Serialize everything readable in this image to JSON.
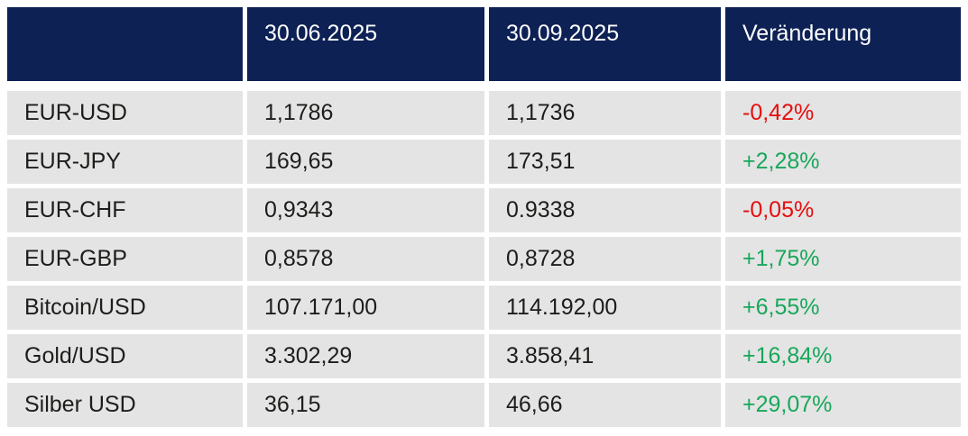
{
  "table": {
    "columns": [
      "",
      "30.06.2025",
      "30.09.2025",
      "Veränderung"
    ],
    "rows": [
      {
        "label": "EUR-USD",
        "value_30_06": "1,1786",
        "value_30_09": "1,1736",
        "change": "-0,42%",
        "direction": "down"
      },
      {
        "label": "EUR-JPY",
        "value_30_06": "169,65",
        "value_30_09": "173,51",
        "change": "+2,28%",
        "direction": "up"
      },
      {
        "label": "EUR-CHF",
        "value_30_06": "0,9343",
        "value_30_09": "0.9338",
        "change": "-0,05%",
        "direction": "down"
      },
      {
        "label": "EUR-GBP",
        "value_30_06": "0,8578",
        "value_30_09": "0,8728",
        "change": "+1,75%",
        "direction": "up"
      },
      {
        "label": "Bitcoin/USD",
        "value_30_06": "107.171,00",
        "value_30_09": "114.192,00",
        "change": "+6,55%",
        "direction": "up"
      },
      {
        "label": "Gold/USD",
        "value_30_06": "3.302,29",
        "value_30_09": "3.858,41",
        "change": "+16,84%",
        "direction": "up"
      },
      {
        "label": "Silber USD",
        "value_30_06": "36,15",
        "value_30_09": "46,66",
        "change": "+29,07%",
        "direction": "up"
      }
    ]
  },
  "chart_data": {
    "type": "table",
    "title": "",
    "columns": [
      "",
      "30.06.2025",
      "30.09.2025",
      "Veränderung"
    ],
    "rows": [
      [
        "EUR-USD",
        "1,1786",
        "1,1736",
        "-0,42%"
      ],
      [
        "EUR-JPY",
        "169,65",
        "173,51",
        "+2,28%"
      ],
      [
        "EUR-CHF",
        "0,9343",
        "0.9338",
        "-0,05%"
      ],
      [
        "EUR-GBP",
        "0,8578",
        "0,8728",
        "+1,75%"
      ],
      [
        "Bitcoin/USD",
        "107.171,00",
        "114.192,00",
        "+6,55%"
      ],
      [
        "Gold/USD",
        "3.302,29",
        "3.858,41",
        "+16,84%"
      ],
      [
        "Silber USD",
        "36,15",
        "46,66",
        "+29,07%"
      ]
    ],
    "notes": "positive changes rendered green, negative changes rendered red"
  },
  "colors": {
    "header_bg": "#0d2155",
    "header_text": "#ffffff",
    "row_bg": "#e4e4e4",
    "body_text": "#1d1d1b",
    "positive": "#18a75a",
    "negative": "#e60d0d"
  }
}
